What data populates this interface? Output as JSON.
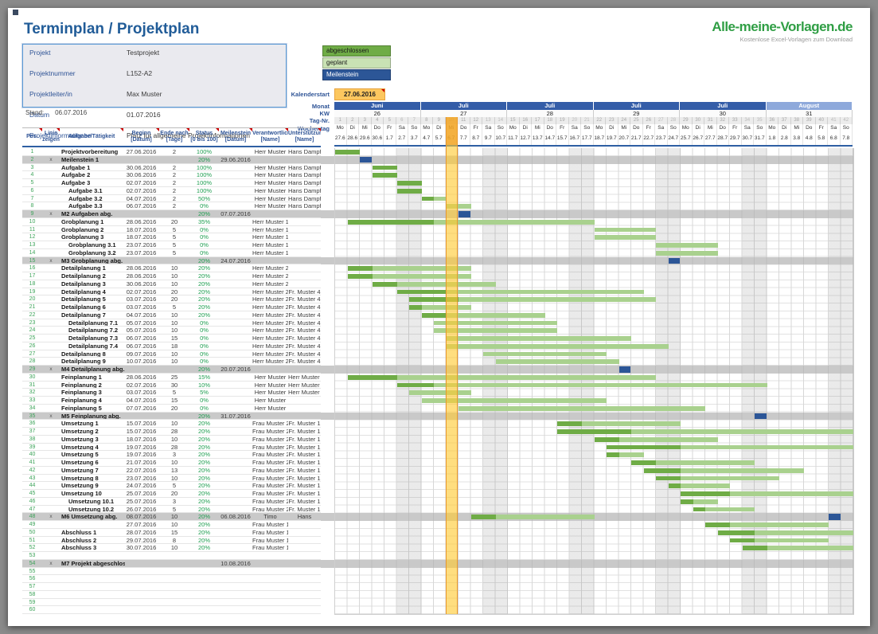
{
  "page": {
    "title": "Terminplan / Projektplan",
    "stand_label": "Stand:",
    "stand_value": "06.07.2016"
  },
  "logo": {
    "title": "Alle-meine-Vorlagen.de",
    "subtitle": "Kostenlose Excel-Vorlagen zum Download"
  },
  "info_box": {
    "rows": [
      {
        "label": "Projekt",
        "value": "Testprojekt"
      },
      {
        "label": "Projektnummer",
        "value": "L152-A2"
      },
      {
        "label": "Projektleiter/in",
        "value": "Max Muster"
      },
      {
        "label": "Datum",
        "value": "01.07.2016"
      },
      {
        "label": "Projektinformationen",
        "value": "Platz für allgemeine Projektinformationen"
      }
    ]
  },
  "legend": [
    {
      "label": "abgeschlossen",
      "color": "#6fac46",
      "text": "#1a1a1a"
    },
    {
      "label": "geplant",
      "color": "#c9e2b4",
      "text": "#1a1a1a"
    },
    {
      "label": "Meilenstein",
      "color": "#2c5697",
      "text": "#ffffff"
    }
  ],
  "calendar": {
    "start_label": "Kalenderstart",
    "start_value": "27.06.2016",
    "labels": {
      "monat": "Monat",
      "kw": "KW",
      "tag": "Tag-Nr.",
      "wochentag": "Wochentag"
    },
    "weeks": [
      {
        "monat": "Juni",
        "kw": "26",
        "light": false
      },
      {
        "monat": "Juli",
        "kw": "27",
        "light": false
      },
      {
        "monat": "Juli",
        "kw": "28",
        "light": false
      },
      {
        "monat": "Juli",
        "kw": "29",
        "light": false
      },
      {
        "monat": "Juli",
        "kw": "30",
        "light": false
      },
      {
        "monat": "August",
        "kw": "31",
        "light": true
      }
    ],
    "weekdays": [
      "Mo",
      "Di",
      "Mi",
      "Do",
      "Fr",
      "Sa",
      "So"
    ],
    "dates": [
      "27.6",
      "28.6",
      "29.6",
      "30.6",
      "1.7",
      "2.7",
      "3.7",
      "4.7",
      "5.7",
      "6.7",
      "7.7",
      "8.7",
      "9.7",
      "10.7",
      "11.7",
      "12.7",
      "13.7",
      "14.7",
      "15.7",
      "16.7",
      "17.7",
      "18.7",
      "19.7",
      "20.7",
      "21.7",
      "22.7",
      "23.7",
      "24.7",
      "25.7",
      "26.7",
      "27.7",
      "28.7",
      "29.7",
      "30.7",
      "31.7",
      "1.8",
      "2.8",
      "3.8",
      "4.8",
      "5.8",
      "6.8",
      "7.8"
    ],
    "total_days": 42
  },
  "table": {
    "headers": [
      {
        "l1": "Pos.",
        "l2": ""
      },
      {
        "l1": "Linie",
        "l2": "zeigen"
      },
      {
        "l1": "Aufgabe/Tätigkeit",
        "l2": ""
      },
      {
        "l1": "Beginn",
        "l2": "[Datum]"
      },
      {
        "l1": "Ende nach",
        "l2": "[Tage]"
      },
      {
        "l1": "Status",
        "l2": "[0 bis 100]"
      },
      {
        "l1": "Meilenstein",
        "l2": "[Datum]"
      },
      {
        "l1": "Verantwortlich",
        "l2": "[Name]"
      },
      {
        "l1": "Unterstützung",
        "l2": "[Name]"
      }
    ],
    "rows": [
      {
        "pos": 1,
        "name": "Projektvorbereitung",
        "beg": "27.06.2016",
        "dur": 2,
        "st": 100,
        "ver": "Herr Muster",
        "sup": "Hans Dampf"
      },
      {
        "pos": 2,
        "x": "x",
        "type": "ms",
        "name": "Meilenstein 1",
        "st": 20,
        "mst": "29.06.2016"
      },
      {
        "pos": 3,
        "name": "Aufgabe 1",
        "beg": "30.06.2016",
        "dur": 2,
        "st": 100,
        "ver": "Herr Muster",
        "sup": "Hans Dampf"
      },
      {
        "pos": 4,
        "name": "Aufgabe 2",
        "beg": "30.06.2016",
        "dur": 2,
        "st": 100,
        "ver": "Herr Muster",
        "sup": "Hans Dampf"
      },
      {
        "pos": 5,
        "name": "Aufgabe 3",
        "beg": "02.07.2016",
        "dur": 2,
        "st": 100,
        "ver": "Herr Muster",
        "sup": "Hans Dampf"
      },
      {
        "pos": 6,
        "ind": 1,
        "name": "Aufgabe 3.1",
        "beg": "02.07.2016",
        "dur": 2,
        "st": 100,
        "ver": "Herr Muster",
        "sup": "Hans Dampf"
      },
      {
        "pos": 7,
        "ind": 1,
        "name": "Aufgabe 3.2",
        "beg": "04.07.2016",
        "dur": 2,
        "st": 50,
        "ver": "Herr Muster",
        "sup": "Hans Dampf"
      },
      {
        "pos": 8,
        "ind": 1,
        "name": "Aufgabe 3.3",
        "beg": "06.07.2016",
        "dur": 2,
        "st": 0,
        "ver": "Herr Muster",
        "sup": "Hans Dampf"
      },
      {
        "pos": 9,
        "x": "x",
        "type": "ms",
        "name": "M2 Aufgaben abg.",
        "st": 20,
        "mst": "07.07.2016"
      },
      {
        "pos": 10,
        "name": "Grobplanung 1",
        "beg": "28.06.2016",
        "dur": 20,
        "st": 35,
        "ver": "Herr Muster 1"
      },
      {
        "pos": 11,
        "name": "Grobplanung 2",
        "beg": "18.07.2016",
        "dur": 5,
        "st": 0,
        "ver": "Herr Muster 1"
      },
      {
        "pos": 12,
        "name": "Grobplanung 3",
        "beg": "18.07.2016",
        "dur": 5,
        "st": 0,
        "ver": "Herr Muster 1"
      },
      {
        "pos": 13,
        "ind": 1,
        "name": "Grobplanung 3.1",
        "beg": "23.07.2016",
        "dur": 5,
        "st": 0,
        "ver": "Herr Muster 1"
      },
      {
        "pos": 14,
        "ind": 1,
        "name": "Grobplanung 3.2",
        "beg": "23.07.2016",
        "dur": 5,
        "st": 0,
        "ver": "Herr Muster 1"
      },
      {
        "pos": 15,
        "x": "x",
        "type": "ms",
        "name": "M3 Grobplanung abg.",
        "st": 20,
        "mst": "24.07.2016"
      },
      {
        "pos": 16,
        "name": "Detailplanung 1",
        "beg": "28.06.2016",
        "dur": 10,
        "st": 20,
        "ver": "Herr Muster 2"
      },
      {
        "pos": 17,
        "name": "Detailplanung 2",
        "beg": "28.06.2016",
        "dur": 10,
        "st": 20,
        "ver": "Herr Muster 2"
      },
      {
        "pos": 18,
        "name": "Detailplanung 3",
        "beg": "30.06.2016",
        "dur": 10,
        "st": 20,
        "ver": "Herr Muster 2"
      },
      {
        "pos": 19,
        "name": "Detailplanung 4",
        "beg": "02.07.2016",
        "dur": 20,
        "st": 20,
        "ver": "Herr Muster 2",
        "sup": "Fr. Muster 4"
      },
      {
        "pos": 20,
        "name": "Detailplanung 5",
        "beg": "03.07.2016",
        "dur": 20,
        "st": 20,
        "ver": "Herr Muster 2",
        "sup": "Fr. Muster 4"
      },
      {
        "pos": 21,
        "name": "Detailplanung 6",
        "beg": "03.07.2016",
        "dur": 5,
        "st": 20,
        "ver": "Herr Muster 2",
        "sup": "Fr. Muster 4"
      },
      {
        "pos": 22,
        "name": "Detailplanung 7",
        "beg": "04.07.2016",
        "dur": 10,
        "st": 20,
        "ver": "Herr Muster 2",
        "sup": "Fr. Muster 4"
      },
      {
        "pos": 23,
        "ind": 1,
        "name": "Detailplanung 7.1",
        "beg": "05.07.2016",
        "dur": 10,
        "st": 0,
        "ver": "Herr Muster 2",
        "sup": "Fr. Muster 4"
      },
      {
        "pos": 24,
        "ind": 1,
        "name": "Detailplanung 7.2",
        "beg": "05.07.2016",
        "dur": 10,
        "st": 0,
        "ver": "Herr Muster 2",
        "sup": "Fr. Muster 4"
      },
      {
        "pos": 25,
        "ind": 1,
        "name": "Detailplanung 7.3",
        "beg": "06.07.2016",
        "dur": 15,
        "st": 0,
        "ver": "Herr Muster 2",
        "sup": "Fr. Muster 4"
      },
      {
        "pos": 26,
        "ind": 1,
        "name": "Detailplanung 7.4",
        "beg": "06.07.2016",
        "dur": 18,
        "st": 0,
        "ver": "Herr Muster 2",
        "sup": "Fr. Muster 4"
      },
      {
        "pos": 27,
        "name": "Detailplanung 8",
        "beg": "09.07.2016",
        "dur": 10,
        "st": 0,
        "ver": "Herr Muster 2",
        "sup": "Fr. Muster 4"
      },
      {
        "pos": 28,
        "name": "Detailplanung 9",
        "beg": "10.07.2016",
        "dur": 10,
        "st": 0,
        "ver": "Herr Muster 2",
        "sup": "Fr. Muster 4"
      },
      {
        "pos": 29,
        "x": "x",
        "type": "ms",
        "name": "M4 Detailplanung abg.",
        "st": 20,
        "mst": "20.07.2016"
      },
      {
        "pos": 30,
        "name": "Feinplanung 1",
        "beg": "28.06.2016",
        "dur": 25,
        "st": 15,
        "ver": "Herr Muster",
        "sup": "Herr Muster 5"
      },
      {
        "pos": 31,
        "name": "Feinplanung 2",
        "beg": "02.07.2016",
        "dur": 30,
        "st": 10,
        "ver": "Herr Muster",
        "sup": "Herr Muster 5"
      },
      {
        "pos": 32,
        "name": "Feinplanung 3",
        "beg": "03.07.2016",
        "dur": 5,
        "st": 5,
        "ver": "Herr Muster",
        "sup": "Herr Muster 5"
      },
      {
        "pos": 33,
        "name": "Feinplanung 4",
        "beg": "04.07.2016",
        "dur": 15,
        "st": 0,
        "ver": "Herr Muster"
      },
      {
        "pos": 34,
        "name": "Feinplanung 5",
        "beg": "07.07.2016",
        "dur": 20,
        "st": 0,
        "ver": "Herr Muster"
      },
      {
        "pos": 35,
        "x": "x",
        "type": "ms",
        "name": "M5 Feinplanung abg.",
        "st": 20,
        "mst": "31.07.2016"
      },
      {
        "pos": 36,
        "name": "Umsetzung 1",
        "beg": "15.07.2016",
        "dur": 10,
        "st": 20,
        "ver": "Frau Muster 2",
        "sup": "Fr. Muster 1"
      },
      {
        "pos": 37,
        "name": "Umsetzung 2",
        "beg": "15.07.2016",
        "dur": 28,
        "st": 20,
        "ver": "Frau Muster 2",
        "sup": "Fr. Muster 1"
      },
      {
        "pos": 38,
        "name": "Umsetzung 3",
        "beg": "18.07.2016",
        "dur": 10,
        "st": 20,
        "ver": "Frau Muster 2",
        "sup": "Fr. Muster 1"
      },
      {
        "pos": 39,
        "name": "Umsetzung 4",
        "beg": "19.07.2016",
        "dur": 28,
        "st": 20,
        "ver": "Frau Muster 2",
        "sup": "Fr. Muster 1"
      },
      {
        "pos": 40,
        "name": "Umsetzung 5",
        "beg": "19.07.2016",
        "dur": 3,
        "st": 20,
        "ver": "Frau Muster 2",
        "sup": "Fr. Muster 1"
      },
      {
        "pos": 41,
        "name": "Umsetzung 6",
        "beg": "21.07.2016",
        "dur": 10,
        "st": 20,
        "ver": "Frau Muster 2",
        "sup": "Fr. Muster 1"
      },
      {
        "pos": 42,
        "name": "Umsetzung 7",
        "beg": "22.07.2016",
        "dur": 13,
        "st": 20,
        "ver": "Frau Muster 2",
        "sup": "Fr. Muster 1"
      },
      {
        "pos": 43,
        "name": "Umsetzung 8",
        "beg": "23.07.2016",
        "dur": 10,
        "st": 20,
        "ver": "Frau Muster 2",
        "sup": "Fr. Muster 1"
      },
      {
        "pos": 44,
        "name": "Umsetzung 9",
        "beg": "24.07.2016",
        "dur": 5,
        "st": 20,
        "ver": "Frau Muster 2",
        "sup": "Fr. Muster 1"
      },
      {
        "pos": 45,
        "name": "Umsetzung 10",
        "beg": "25.07.2016",
        "dur": 20,
        "st": 20,
        "ver": "Frau Muster 2",
        "sup": "Fr. Muster 1"
      },
      {
        "pos": 46,
        "ind": 1,
        "name": "Umsetzung 10.1",
        "beg": "25.07.2016",
        "dur": 3,
        "st": 20,
        "ver": "Frau Muster 2",
        "sup": "Fr. Muster 1"
      },
      {
        "pos": 47,
        "ind": 1,
        "name": "Umsetzung 10.2",
        "beg": "26.07.2016",
        "dur": 5,
        "st": 20,
        "ver": "Frau Muster 2",
        "sup": "Fr. Muster 1"
      },
      {
        "pos": 48,
        "x": "x",
        "type": "ms",
        "name": "M6 Umsetzung abg.",
        "beg": "08.07.2016",
        "dur": 10,
        "st": 20,
        "mst": "06.08.2016",
        "ver": "Timo",
        "sup": "Hans"
      },
      {
        "pos": 49,
        "beg": "27.07.2016",
        "dur": 10,
        "st": 20,
        "ver": "Frau Muster 1"
      },
      {
        "pos": 50,
        "name": "Abschluss 1",
        "beg": "28.07.2016",
        "dur": 15,
        "st": 20,
        "ver": "Frau Muster 1"
      },
      {
        "pos": 51,
        "name": "Abschluss 2",
        "beg": "29.07.2016",
        "dur": 8,
        "st": 20,
        "ver": "Frau Muster 1"
      },
      {
        "pos": 52,
        "name": "Abschluss 3",
        "beg": "30.07.2016",
        "dur": 10,
        "st": 20,
        "ver": "Frau Muster 1"
      },
      {
        "pos": 53
      },
      {
        "pos": 54,
        "x": "x",
        "type": "ms",
        "name": "M7 Projekt abgeschlossen",
        "mst": "10.08.2016"
      },
      {
        "pos": 55
      },
      {
        "pos": 56
      },
      {
        "pos": 57
      },
      {
        "pos": 58
      },
      {
        "pos": 59
      },
      {
        "pos": 60
      }
    ]
  },
  "colors": {
    "accent_blue": "#2f5496",
    "month_band": "#345da8",
    "month_band_light": "#8ea9db",
    "bar_done": "#6fac46",
    "bar_planned": "#a9d18e",
    "milestone": "#2c5697",
    "today": "#ffc02e",
    "summary_row": "#c9c9c9",
    "status_green": "#1e9e50",
    "pos_green": "#3fa45b"
  }
}
